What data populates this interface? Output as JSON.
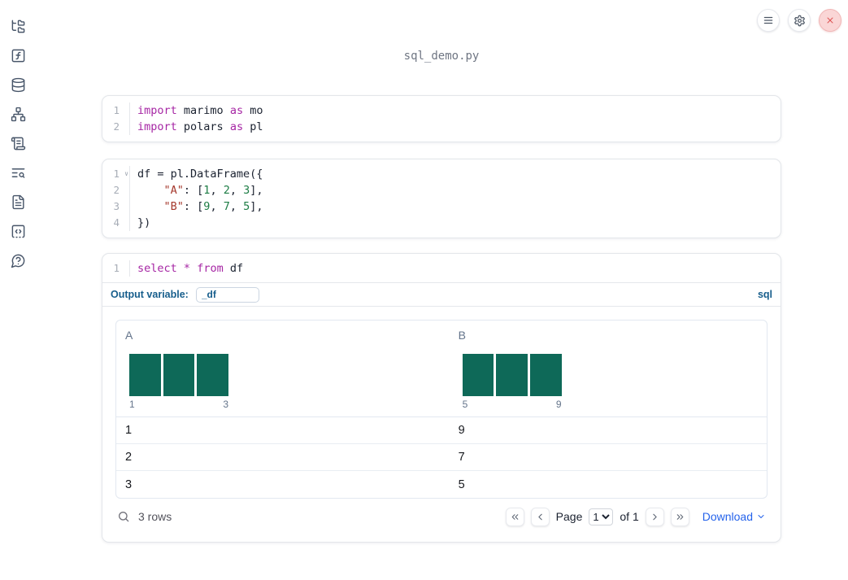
{
  "app": {
    "filename": "sql_demo.py"
  },
  "theme": {
    "accent_blue": "#175e8c",
    "link_blue": "#2563eb",
    "bar_teal": "#0e6958",
    "keyword_purple": "#a626a4",
    "string_red": "#a5382c",
    "number_green": "#1c7c44",
    "plain_code": "#1b2230",
    "icon_slate": "#475569",
    "close_red": "#dd5454"
  },
  "sidebar": {
    "icons": [
      "file-tree",
      "square-function",
      "database",
      "network",
      "scroll-text",
      "text-search",
      "file-text",
      "square-dashed-bottom-code",
      "message-circle-question"
    ]
  },
  "topbar": {
    "buttons": [
      "menu",
      "settings",
      "shutdown"
    ]
  },
  "cells": [
    {
      "type": "python",
      "lines": [
        {
          "n": "1",
          "tokens": [
            {
              "c": "kw",
              "t": "import"
            },
            {
              "c": "pl",
              "t": " marimo "
            },
            {
              "c": "kw",
              "t": "as"
            },
            {
              "c": "pl",
              "t": " mo"
            }
          ]
        },
        {
          "n": "2",
          "tokens": [
            {
              "c": "kw",
              "t": "import"
            },
            {
              "c": "pl",
              "t": " polars "
            },
            {
              "c": "kw",
              "t": "as"
            },
            {
              "c": "pl",
              "t": " pl"
            }
          ]
        }
      ]
    },
    {
      "type": "python",
      "lines": [
        {
          "n": "1",
          "fold": true,
          "tokens": [
            {
              "c": "pl",
              "t": "df = pl.DataFrame({"
            }
          ]
        },
        {
          "n": "2",
          "tokens": [
            {
              "c": "pl",
              "t": "    "
            },
            {
              "c": "str",
              "t": "\"A\""
            },
            {
              "c": "pl",
              "t": ": ["
            },
            {
              "c": "num",
              "t": "1"
            },
            {
              "c": "pl",
              "t": ", "
            },
            {
              "c": "num",
              "t": "2"
            },
            {
              "c": "pl",
              "t": ", "
            },
            {
              "c": "num",
              "t": "3"
            },
            {
              "c": "pl",
              "t": "],"
            }
          ]
        },
        {
          "n": "3",
          "tokens": [
            {
              "c": "pl",
              "t": "    "
            },
            {
              "c": "str",
              "t": "\"B\""
            },
            {
              "c": "pl",
              "t": ": ["
            },
            {
              "c": "num",
              "t": "9"
            },
            {
              "c": "pl",
              "t": ", "
            },
            {
              "c": "num",
              "t": "7"
            },
            {
              "c": "pl",
              "t": ", "
            },
            {
              "c": "num",
              "t": "5"
            },
            {
              "c": "pl",
              "t": "],"
            }
          ]
        },
        {
          "n": "4",
          "tokens": [
            {
              "c": "pl",
              "t": "})"
            }
          ]
        }
      ]
    },
    {
      "type": "sql",
      "lines": [
        {
          "n": "1",
          "tokens": [
            {
              "c": "kw",
              "t": "select"
            },
            {
              "c": "pl",
              "t": " "
            },
            {
              "c": "kw",
              "t": "*"
            },
            {
              "c": "pl",
              "t": " "
            },
            {
              "c": "kw",
              "t": "from"
            },
            {
              "c": "pl",
              "t": " df"
            }
          ]
        }
      ],
      "footer": {
        "output_variable_label": "Output variable:",
        "output_variable_value": "_df",
        "language_badge": "sql"
      }
    }
  ],
  "table": {
    "columns": [
      {
        "name": "A",
        "bars": 3,
        "min_label": "1",
        "max_label": "3"
      },
      {
        "name": "B",
        "bars": 3,
        "min_label": "5",
        "max_label": "9"
      }
    ],
    "rows": [
      [
        "1",
        "9"
      ],
      [
        "2",
        "7"
      ],
      [
        "3",
        "5"
      ]
    ],
    "footer": {
      "row_count": "3 rows",
      "page_label": "Page",
      "page_value": "1",
      "of_label": "of 1",
      "download_label": "Download"
    }
  }
}
